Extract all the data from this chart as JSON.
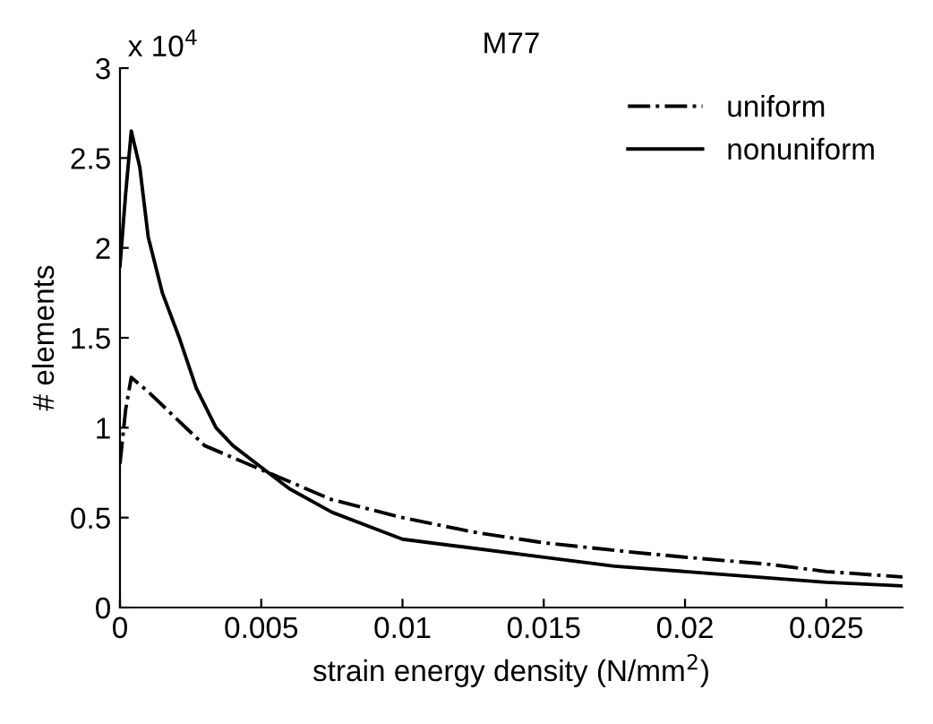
{
  "chart_data": {
    "type": "line",
    "title": "M77",
    "xlabel": "strain energy density (N/mm$^{2}$)",
    "ylabel": "# elements",
    "annotations": [
      "x 10$^{4}$"
    ],
    "xlim": [
      0,
      0.0277
    ],
    "xticks": [
      {
        "value": 0,
        "label": "0"
      },
      0.005,
      0.01,
      0.015,
      0.02,
      0.025
    ],
    "ylim": [
      0,
      3
    ],
    "yticks": [
      0,
      0.5,
      1,
      1.5,
      2,
      2.5,
      3
    ],
    "grid": false,
    "legend": "top right",
    "marker": "none",
    "series": [
      {
        "name": "uniform",
        "color": "#000000",
        "line_style": "dashdot",
        "x": [
          0,
          0.0002,
          0.0004,
          0.001,
          0.002,
          0.003,
          0.0045,
          0.006,
          0.0075,
          0.01,
          0.0125,
          0.015,
          0.018,
          0.02,
          0.023,
          0.025,
          0.0277
        ],
        "values": [
          0.8,
          1.1,
          1.28,
          1.2,
          1.05,
          0.9,
          0.8,
          0.7,
          0.6,
          0.5,
          0.42,
          0.36,
          0.31,
          0.28,
          0.24,
          0.2,
          0.17
        ]
      },
      {
        "name": "nonuniform",
        "color": "#000000",
        "line_style": "solid",
        "x": [
          0,
          0.0002,
          0.0004,
          0.0007,
          0.001,
          0.0015,
          0.0021,
          0.0027,
          0.0034,
          0.004,
          0.005,
          0.006,
          0.0075,
          0.009,
          0.01,
          0.012,
          0.015,
          0.0175,
          0.02,
          0.0225,
          0.025,
          0.0277
        ],
        "values": [
          1.9,
          2.3,
          2.65,
          2.45,
          2.06,
          1.75,
          1.5,
          1.22,
          1.0,
          0.9,
          0.78,
          0.66,
          0.53,
          0.44,
          0.38,
          0.34,
          0.28,
          0.23,
          0.2,
          0.17,
          0.14,
          0.12
        ]
      }
    ]
  }
}
